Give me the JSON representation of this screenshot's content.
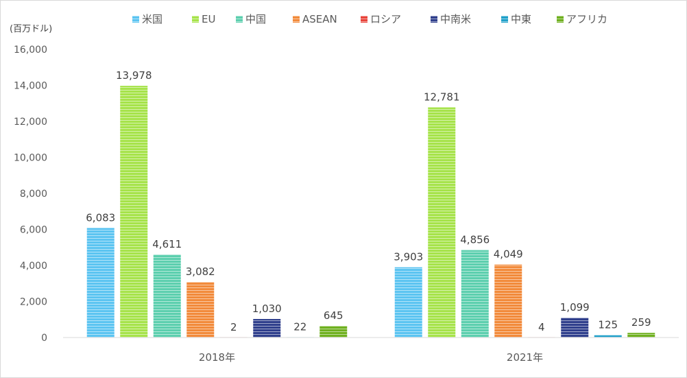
{
  "chart_data": {
    "type": "bar",
    "title": "",
    "unit_label": "(百万ドル)",
    "categories": [
      "2018年",
      "2021年"
    ],
    "ylim": [
      0,
      16000
    ],
    "yticks": [
      0,
      2000,
      4000,
      6000,
      8000,
      10000,
      12000,
      14000,
      16000
    ],
    "ytick_labels": [
      "0",
      "2,000",
      "4,000",
      "6,000",
      "8,000",
      "10,000",
      "12,000",
      "14,000",
      "16,000"
    ],
    "grid": false,
    "legend_position": "top",
    "series": [
      {
        "name": "米国",
        "color": "#5bc4f1",
        "values": [
          6083,
          3903
        ],
        "labels": [
          "6,083",
          "3,903"
        ]
      },
      {
        "name": "EU",
        "color": "#a6e34a",
        "values": [
          13978,
          12781
        ],
        "labels": [
          "13,978",
          "12,781"
        ]
      },
      {
        "name": "中国",
        "color": "#5ccfae",
        "values": [
          4611,
          4856
        ],
        "labels": [
          "4,611",
          "4,856"
        ]
      },
      {
        "name": "ASEAN",
        "color": "#f28a3a",
        "values": [
          3082,
          4049
        ],
        "labels": [
          "3,082",
          "4,049"
        ]
      },
      {
        "name": "ロシア",
        "color": "#e8433a",
        "values": [
          2,
          4
        ],
        "labels": [
          "2",
          "4"
        ]
      },
      {
        "name": "中南米",
        "color": "#2f3f8c",
        "values": [
          1030,
          1099
        ],
        "labels": [
          "1,030",
          "1,099"
        ]
      },
      {
        "name": "中東",
        "color": "#1fa0c9",
        "values": [
          22,
          125
        ],
        "labels": [
          "22",
          "125"
        ]
      },
      {
        "name": "アフリカ",
        "color": "#6fb01f",
        "values": [
          645,
          259
        ],
        "labels": [
          "645",
          "259"
        ]
      }
    ]
  }
}
